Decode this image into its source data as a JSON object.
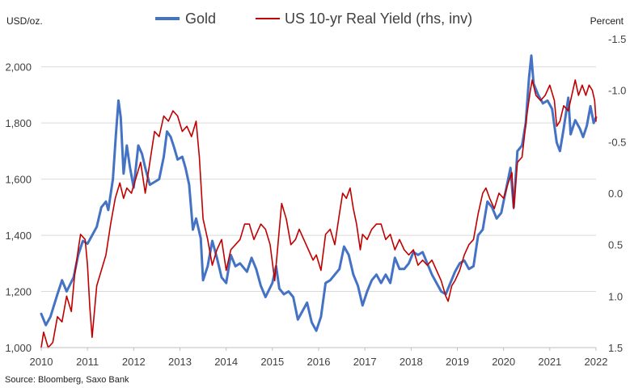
{
  "chart_data": {
    "type": "line",
    "left_axis_unit": "USD/oz.",
    "right_axis_unit": "Percent",
    "x_ticks": [
      "2010",
      "2011",
      "2012",
      "2013",
      "2014",
      "2015",
      "2016",
      "2017",
      "2018",
      "2019",
      "2020",
      "2021",
      "2022"
    ],
    "y_left_ticks": [
      "1,000",
      "1,200",
      "1,400",
      "1,600",
      "1,800",
      "2,000"
    ],
    "y_left_range": [
      1000,
      2100
    ],
    "y_right_ticks": [
      "-1.5",
      "-1.0",
      "-0.5",
      "0.0",
      "0.5",
      "1.0",
      "1.5"
    ],
    "y_right_range": [
      -1.5,
      1.5
    ],
    "y_right_inverted": true,
    "grid": "horizontal",
    "legend_position": "top-center",
    "source": "Source: Bloomberg, Saxo Bank",
    "series": [
      {
        "name": "Gold",
        "axis": "left",
        "color": "#4472C4",
        "points": [
          [
            2010.0,
            1120
          ],
          [
            2010.1,
            1080
          ],
          [
            2010.2,
            1110
          ],
          [
            2010.35,
            1190
          ],
          [
            2010.45,
            1240
          ],
          [
            2010.55,
            1200
          ],
          [
            2010.7,
            1250
          ],
          [
            2010.8,
            1330
          ],
          [
            2010.9,
            1380
          ],
          [
            2011.0,
            1370
          ],
          [
            2011.1,
            1400
          ],
          [
            2011.2,
            1430
          ],
          [
            2011.3,
            1500
          ],
          [
            2011.4,
            1520
          ],
          [
            2011.45,
            1490
          ],
          [
            2011.55,
            1600
          ],
          [
            2011.62,
            1770
          ],
          [
            2011.67,
            1880
          ],
          [
            2011.72,
            1820
          ],
          [
            2011.78,
            1620
          ],
          [
            2011.85,
            1720
          ],
          [
            2011.92,
            1640
          ],
          [
            2012.0,
            1570
          ],
          [
            2012.1,
            1720
          ],
          [
            2012.18,
            1690
          ],
          [
            2012.25,
            1640
          ],
          [
            2012.35,
            1580
          ],
          [
            2012.45,
            1590
          ],
          [
            2012.55,
            1600
          ],
          [
            2012.65,
            1680
          ],
          [
            2012.72,
            1770
          ],
          [
            2012.8,
            1750
          ],
          [
            2012.88,
            1710
          ],
          [
            2012.95,
            1670
          ],
          [
            2013.05,
            1680
          ],
          [
            2013.12,
            1640
          ],
          [
            2013.2,
            1580
          ],
          [
            2013.28,
            1420
          ],
          [
            2013.35,
            1460
          ],
          [
            2013.45,
            1390
          ],
          [
            2013.5,
            1240
          ],
          [
            2013.6,
            1290
          ],
          [
            2013.7,
            1380
          ],
          [
            2013.8,
            1320
          ],
          [
            2013.9,
            1250
          ],
          [
            2014.0,
            1230
          ],
          [
            2014.1,
            1330
          ],
          [
            2014.2,
            1290
          ],
          [
            2014.3,
            1300
          ],
          [
            2014.45,
            1270
          ],
          [
            2014.55,
            1320
          ],
          [
            2014.65,
            1280
          ],
          [
            2014.75,
            1220
          ],
          [
            2014.85,
            1180
          ],
          [
            2015.0,
            1230
          ],
          [
            2015.08,
            1290
          ],
          [
            2015.15,
            1210
          ],
          [
            2015.25,
            1190
          ],
          [
            2015.35,
            1200
          ],
          [
            2015.45,
            1180
          ],
          [
            2015.55,
            1100
          ],
          [
            2015.65,
            1130
          ],
          [
            2015.75,
            1160
          ],
          [
            2015.85,
            1090
          ],
          [
            2015.95,
            1060
          ],
          [
            2016.05,
            1110
          ],
          [
            2016.15,
            1230
          ],
          [
            2016.25,
            1240
          ],
          [
            2016.35,
            1260
          ],
          [
            2016.45,
            1280
          ],
          [
            2016.55,
            1360
          ],
          [
            2016.65,
            1330
          ],
          [
            2016.75,
            1260
          ],
          [
            2016.85,
            1220
          ],
          [
            2016.95,
            1150
          ],
          [
            2017.05,
            1200
          ],
          [
            2017.15,
            1240
          ],
          [
            2017.25,
            1260
          ],
          [
            2017.35,
            1230
          ],
          [
            2017.45,
            1260
          ],
          [
            2017.55,
            1230
          ],
          [
            2017.65,
            1320
          ],
          [
            2017.75,
            1280
          ],
          [
            2017.85,
            1280
          ],
          [
            2017.95,
            1300
          ],
          [
            2018.05,
            1340
          ],
          [
            2018.15,
            1330
          ],
          [
            2018.25,
            1340
          ],
          [
            2018.35,
            1300
          ],
          [
            2018.45,
            1260
          ],
          [
            2018.55,
            1230
          ],
          [
            2018.65,
            1200
          ],
          [
            2018.75,
            1190
          ],
          [
            2018.85,
            1230
          ],
          [
            2018.95,
            1270
          ],
          [
            2019.05,
            1300
          ],
          [
            2019.15,
            1310
          ],
          [
            2019.25,
            1280
          ],
          [
            2019.35,
            1290
          ],
          [
            2019.45,
            1400
          ],
          [
            2019.55,
            1420
          ],
          [
            2019.65,
            1520
          ],
          [
            2019.75,
            1500
          ],
          [
            2019.85,
            1460
          ],
          [
            2019.95,
            1480
          ],
          [
            2020.05,
            1560
          ],
          [
            2020.15,
            1640
          ],
          [
            2020.22,
            1500
          ],
          [
            2020.3,
            1700
          ],
          [
            2020.4,
            1720
          ],
          [
            2020.48,
            1800
          ],
          [
            2020.55,
            1960
          ],
          [
            2020.6,
            2040
          ],
          [
            2020.65,
            1940
          ],
          [
            2020.75,
            1900
          ],
          [
            2020.85,
            1870
          ],
          [
            2020.95,
            1880
          ],
          [
            2021.05,
            1850
          ],
          [
            2021.15,
            1730
          ],
          [
            2021.22,
            1700
          ],
          [
            2021.3,
            1780
          ],
          [
            2021.4,
            1890
          ],
          [
            2021.45,
            1760
          ],
          [
            2021.55,
            1810
          ],
          [
            2021.65,
            1780
          ],
          [
            2021.72,
            1750
          ],
          [
            2021.8,
            1790
          ],
          [
            2021.88,
            1860
          ],
          [
            2021.95,
            1800
          ],
          [
            2022.0,
            1820
          ]
        ]
      },
      {
        "name": "US 10-yr Real Yield (rhs, inv)",
        "axis": "right",
        "color": "#C00000",
        "points": [
          [
            2010.0,
            1.5
          ],
          [
            2010.05,
            1.35
          ],
          [
            2010.15,
            1.5
          ],
          [
            2010.25,
            1.45
          ],
          [
            2010.35,
            1.2
          ],
          [
            2010.45,
            1.25
          ],
          [
            2010.55,
            1.0
          ],
          [
            2010.65,
            1.15
          ],
          [
            2010.72,
            0.8
          ],
          [
            2010.8,
            0.55
          ],
          [
            2010.85,
            0.4
          ],
          [
            2010.95,
            0.45
          ],
          [
            2011.0,
            0.7
          ],
          [
            2011.05,
            1.1
          ],
          [
            2011.1,
            1.4
          ],
          [
            2011.2,
            0.9
          ],
          [
            2011.3,
            0.75
          ],
          [
            2011.4,
            0.6
          ],
          [
            2011.5,
            0.3
          ],
          [
            2011.6,
            0.05
          ],
          [
            2011.7,
            -0.1
          ],
          [
            2011.78,
            0.05
          ],
          [
            2011.85,
            -0.05
          ],
          [
            2011.95,
            0.0
          ],
          [
            2012.05,
            -0.15
          ],
          [
            2012.15,
            -0.3
          ],
          [
            2012.25,
            0.0
          ],
          [
            2012.35,
            -0.3
          ],
          [
            2012.45,
            -0.6
          ],
          [
            2012.55,
            -0.55
          ],
          [
            2012.65,
            -0.75
          ],
          [
            2012.75,
            -0.7
          ],
          [
            2012.85,
            -0.8
          ],
          [
            2012.95,
            -0.75
          ],
          [
            2013.05,
            -0.6
          ],
          [
            2013.15,
            -0.65
          ],
          [
            2013.25,
            -0.55
          ],
          [
            2013.35,
            -0.7
          ],
          [
            2013.42,
            -0.35
          ],
          [
            2013.5,
            0.25
          ],
          [
            2013.6,
            0.45
          ],
          [
            2013.7,
            0.7
          ],
          [
            2013.8,
            0.55
          ],
          [
            2013.9,
            0.45
          ],
          [
            2014.0,
            0.75
          ],
          [
            2014.1,
            0.55
          ],
          [
            2014.2,
            0.5
          ],
          [
            2014.3,
            0.45
          ],
          [
            2014.4,
            0.3
          ],
          [
            2014.5,
            0.3
          ],
          [
            2014.6,
            0.45
          ],
          [
            2014.65,
            0.4
          ],
          [
            2014.75,
            0.3
          ],
          [
            2014.85,
            0.35
          ],
          [
            2014.95,
            0.5
          ],
          [
            2015.05,
            0.85
          ],
          [
            2015.15,
            0.35
          ],
          [
            2015.2,
            0.1
          ],
          [
            2015.3,
            0.25
          ],
          [
            2015.4,
            0.5
          ],
          [
            2015.5,
            0.45
          ],
          [
            2015.58,
            0.35
          ],
          [
            2015.68,
            0.45
          ],
          [
            2015.78,
            0.55
          ],
          [
            2015.88,
            0.65
          ],
          [
            2015.95,
            0.6
          ],
          [
            2016.05,
            0.75
          ],
          [
            2016.15,
            0.4
          ],
          [
            2016.25,
            0.35
          ],
          [
            2016.35,
            0.5
          ],
          [
            2016.45,
            0.2
          ],
          [
            2016.52,
            0.0
          ],
          [
            2016.6,
            0.05
          ],
          [
            2016.68,
            -0.05
          ],
          [
            2016.75,
            0.15
          ],
          [
            2016.82,
            0.3
          ],
          [
            2016.9,
            0.55
          ],
          [
            2016.95,
            0.4
          ],
          [
            2017.05,
            0.45
          ],
          [
            2017.15,
            0.35
          ],
          [
            2017.25,
            0.3
          ],
          [
            2017.35,
            0.3
          ],
          [
            2017.45,
            0.45
          ],
          [
            2017.55,
            0.4
          ],
          [
            2017.65,
            0.55
          ],
          [
            2017.75,
            0.45
          ],
          [
            2017.85,
            0.55
          ],
          [
            2017.95,
            0.6
          ],
          [
            2018.05,
            0.55
          ],
          [
            2018.15,
            0.7
          ],
          [
            2018.25,
            0.65
          ],
          [
            2018.35,
            0.7
          ],
          [
            2018.45,
            0.65
          ],
          [
            2018.55,
            0.75
          ],
          [
            2018.65,
            0.85
          ],
          [
            2018.75,
            1.0
          ],
          [
            2018.8,
            1.05
          ],
          [
            2018.88,
            0.9
          ],
          [
            2018.95,
            0.85
          ],
          [
            2019.05,
            0.75
          ],
          [
            2019.15,
            0.6
          ],
          [
            2019.25,
            0.5
          ],
          [
            2019.35,
            0.45
          ],
          [
            2019.45,
            0.2
          ],
          [
            2019.55,
            0.0
          ],
          [
            2019.62,
            -0.05
          ],
          [
            2019.7,
            0.05
          ],
          [
            2019.8,
            0.15
          ],
          [
            2019.9,
            0.0
          ],
          [
            2020.0,
            0.05
          ],
          [
            2020.1,
            -0.1
          ],
          [
            2020.18,
            -0.2
          ],
          [
            2020.22,
            0.15
          ],
          [
            2020.3,
            -0.3
          ],
          [
            2020.4,
            -0.35
          ],
          [
            2020.5,
            -0.75
          ],
          [
            2020.58,
            -1.0
          ],
          [
            2020.62,
            -1.1
          ],
          [
            2020.7,
            -0.95
          ],
          [
            2020.8,
            -0.9
          ],
          [
            2020.9,
            -0.95
          ],
          [
            2021.0,
            -1.05
          ],
          [
            2021.1,
            -0.9
          ],
          [
            2021.15,
            -0.65
          ],
          [
            2021.22,
            -0.7
          ],
          [
            2021.3,
            -0.85
          ],
          [
            2021.4,
            -0.8
          ],
          [
            2021.5,
            -1.0
          ],
          [
            2021.55,
            -1.1
          ],
          [
            2021.62,
            -0.95
          ],
          [
            2021.7,
            -1.05
          ],
          [
            2021.78,
            -0.95
          ],
          [
            2021.85,
            -1.05
          ],
          [
            2021.92,
            -1.0
          ],
          [
            2021.97,
            -0.9
          ],
          [
            2022.0,
            -0.7
          ]
        ]
      }
    ]
  }
}
